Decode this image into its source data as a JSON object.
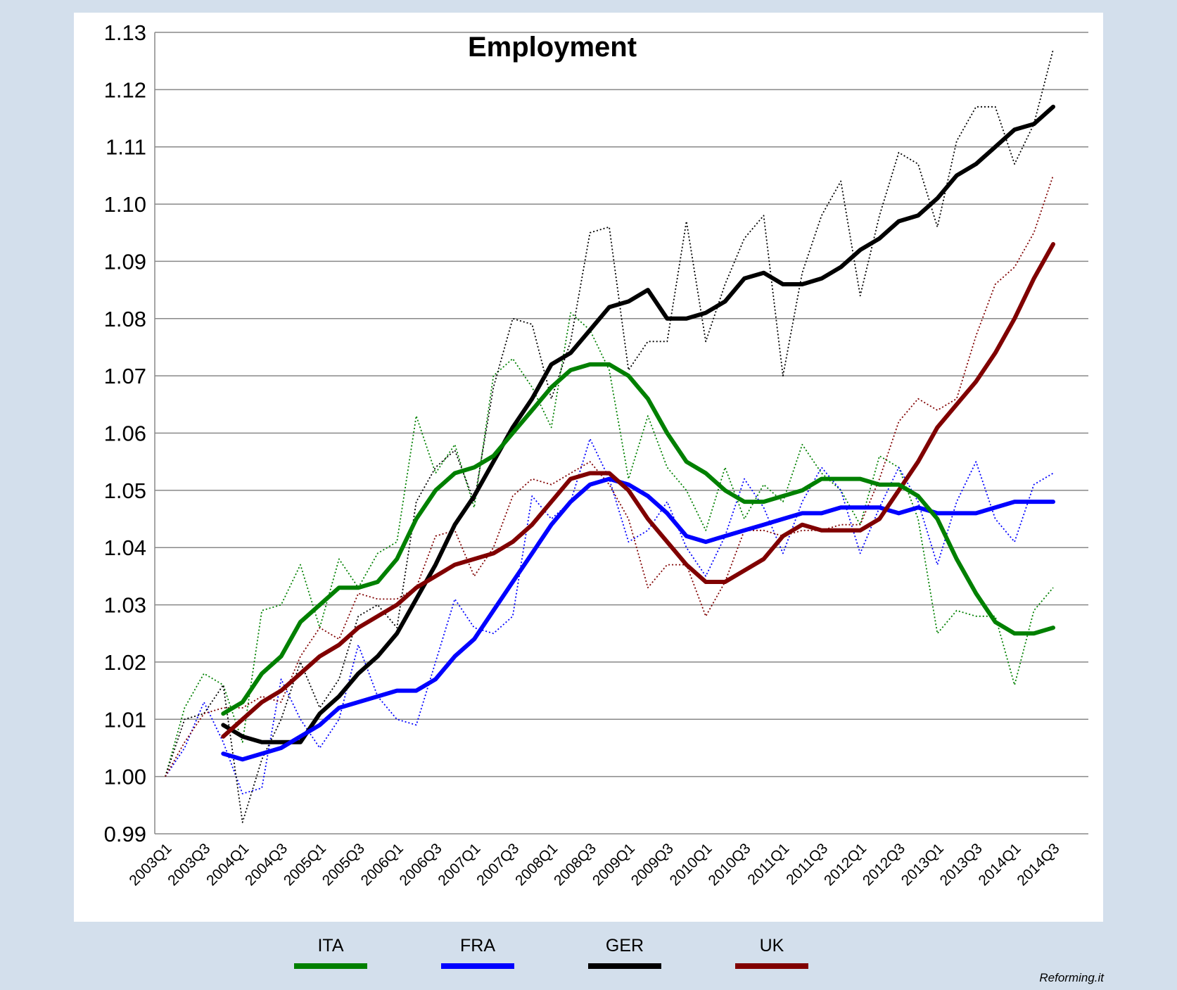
{
  "chart_data": {
    "type": "line",
    "title": "Employment",
    "xlabel": "",
    "ylabel": "",
    "ylim": [
      0.99,
      1.13
    ],
    "yticks": [
      "0.99",
      "1.00",
      "1.01",
      "1.02",
      "1.03",
      "1.04",
      "1.05",
      "1.06",
      "1.07",
      "1.08",
      "1.09",
      "1.10",
      "1.11",
      "1.12",
      "1.13"
    ],
    "grid": true,
    "legend_position": "bottom",
    "x": [
      "2003Q1",
      "2003Q2",
      "2003Q3",
      "2003Q4",
      "2004Q1",
      "2004Q2",
      "2004Q3",
      "2004Q4",
      "2005Q1",
      "2005Q2",
      "2005Q3",
      "2005Q4",
      "2006Q1",
      "2006Q2",
      "2006Q3",
      "2006Q4",
      "2007Q1",
      "2007Q2",
      "2007Q3",
      "2007Q4",
      "2008Q1",
      "2008Q2",
      "2008Q3",
      "2008Q4",
      "2009Q1",
      "2009Q2",
      "2009Q3",
      "2009Q4",
      "2010Q1",
      "2010Q2",
      "2010Q3",
      "2010Q4",
      "2011Q1",
      "2011Q2",
      "2011Q3",
      "2011Q4",
      "2012Q1",
      "2012Q2",
      "2012Q3",
      "2012Q4",
      "2013Q1",
      "2013Q2",
      "2013Q3",
      "2013Q4",
      "2014Q1",
      "2014Q2",
      "2014Q3"
    ],
    "xtick_labels": [
      "2003Q1",
      "2003Q3",
      "2004Q1",
      "2004Q3",
      "2005Q1",
      "2005Q3",
      "2006Q1",
      "2006Q3",
      "2007Q1",
      "2007Q3",
      "2008Q1",
      "2008Q3",
      "2009Q1",
      "2009Q3",
      "2010Q1",
      "2010Q3",
      "2011Q1",
      "2011Q3",
      "2012Q1",
      "2012Q3",
      "2013Q1",
      "2013Q3",
      "2014Q1",
      "2014Q3"
    ],
    "series": [
      {
        "name": "ITA",
        "color": "#008000",
        "raw": [
          1.0,
          1.012,
          1.018,
          1.016,
          1.006,
          1.029,
          1.03,
          1.037,
          1.026,
          1.038,
          1.033,
          1.039,
          1.041,
          1.063,
          1.053,
          1.058,
          1.047,
          1.07,
          1.073,
          1.068,
          1.061,
          1.081,
          1.078,
          1.071,
          1.052,
          1.063,
          1.054,
          1.05,
          1.043,
          1.054,
          1.045,
          1.051,
          1.048,
          1.058,
          1.053,
          1.05,
          1.044,
          1.056,
          1.054,
          1.045,
          1.025,
          1.029,
          1.028,
          1.028,
          1.016,
          1.029,
          1.033
        ],
        "smoothed": [
          null,
          null,
          null,
          1.011,
          1.013,
          1.018,
          1.021,
          1.027,
          1.03,
          1.033,
          1.033,
          1.034,
          1.038,
          1.045,
          1.05,
          1.053,
          1.054,
          1.056,
          1.06,
          1.064,
          1.068,
          1.071,
          1.072,
          1.072,
          1.07,
          1.066,
          1.06,
          1.055,
          1.053,
          1.05,
          1.048,
          1.048,
          1.049,
          1.05,
          1.052,
          1.052,
          1.052,
          1.051,
          1.051,
          1.049,
          1.045,
          1.038,
          1.032,
          1.027,
          1.025,
          1.025,
          1.026
        ]
      },
      {
        "name": "FRA",
        "color": "#0000ff",
        "raw": [
          1.0,
          1.005,
          1.013,
          1.006,
          0.997,
          0.998,
          1.017,
          1.01,
          1.005,
          1.01,
          1.023,
          1.014,
          1.01,
          1.009,
          1.02,
          1.031,
          1.026,
          1.025,
          1.028,
          1.049,
          1.045,
          1.048,
          1.059,
          1.052,
          1.041,
          1.043,
          1.048,
          1.04,
          1.035,
          1.042,
          1.052,
          1.047,
          1.039,
          1.048,
          1.054,
          1.05,
          1.039,
          1.047,
          1.054,
          1.048,
          1.037,
          1.048,
          1.055,
          1.045,
          1.041,
          1.051,
          1.053
        ],
        "smoothed": [
          null,
          null,
          null,
          1.004,
          1.003,
          1.004,
          1.005,
          1.007,
          1.009,
          1.012,
          1.013,
          1.014,
          1.015,
          1.015,
          1.017,
          1.021,
          1.024,
          1.029,
          1.034,
          1.039,
          1.044,
          1.048,
          1.051,
          1.052,
          1.051,
          1.049,
          1.046,
          1.042,
          1.041,
          1.042,
          1.043,
          1.044,
          1.045,
          1.046,
          1.046,
          1.047,
          1.047,
          1.047,
          1.046,
          1.047,
          1.046,
          1.046,
          1.046,
          1.047,
          1.048,
          1.048,
          1.048
        ]
      },
      {
        "name": "GER",
        "color": "#000000",
        "raw": [
          1.0,
          1.01,
          1.011,
          1.016,
          0.992,
          1.003,
          1.01,
          1.02,
          1.012,
          1.017,
          1.028,
          1.03,
          1.026,
          1.048,
          1.054,
          1.057,
          1.048,
          1.068,
          1.08,
          1.079,
          1.066,
          1.076,
          1.095,
          1.096,
          1.071,
          1.076,
          1.076,
          1.097,
          1.076,
          1.086,
          1.094,
          1.098,
          1.07,
          1.088,
          1.098,
          1.104,
          1.084,
          1.098,
          1.109,
          1.107,
          1.096,
          1.111,
          1.117,
          1.117,
          1.107,
          1.114,
          1.127
        ],
        "smoothed": [
          null,
          null,
          null,
          1.009,
          1.007,
          1.006,
          1.006,
          1.006,
          1.011,
          1.014,
          1.018,
          1.021,
          1.025,
          1.031,
          1.037,
          1.044,
          1.049,
          1.055,
          1.061,
          1.066,
          1.072,
          1.074,
          1.078,
          1.082,
          1.083,
          1.085,
          1.08,
          1.08,
          1.081,
          1.083,
          1.087,
          1.088,
          1.086,
          1.086,
          1.087,
          1.089,
          1.092,
          1.094,
          1.097,
          1.098,
          1.101,
          1.105,
          1.107,
          1.11,
          1.113,
          1.114,
          1.117
        ]
      },
      {
        "name": "UK",
        "color": "#800000",
        "raw": [
          1.0,
          1.006,
          1.011,
          1.012,
          1.012,
          1.014,
          1.013,
          1.021,
          1.026,
          1.024,
          1.032,
          1.031,
          1.031,
          1.033,
          1.042,
          1.043,
          1.035,
          1.04,
          1.049,
          1.052,
          1.051,
          1.053,
          1.055,
          1.051,
          1.045,
          1.033,
          1.037,
          1.037,
          1.028,
          1.034,
          1.043,
          1.043,
          1.042,
          1.043,
          1.043,
          1.044,
          1.044,
          1.052,
          1.062,
          1.066,
          1.064,
          1.066,
          1.077,
          1.086,
          1.089,
          1.095,
          1.105
        ],
        "smoothed": [
          null,
          null,
          null,
          1.007,
          1.01,
          1.013,
          1.015,
          1.018,
          1.021,
          1.023,
          1.026,
          1.028,
          1.03,
          1.033,
          1.035,
          1.037,
          1.038,
          1.039,
          1.041,
          1.044,
          1.048,
          1.052,
          1.053,
          1.053,
          1.05,
          1.045,
          1.041,
          1.037,
          1.034,
          1.034,
          1.036,
          1.038,
          1.042,
          1.044,
          1.043,
          1.043,
          1.043,
          1.045,
          1.05,
          1.055,
          1.061,
          1.065,
          1.069,
          1.074,
          1.08,
          1.087,
          1.093
        ]
      }
    ]
  },
  "legend": [
    {
      "label": "ITA",
      "color": "#008000"
    },
    {
      "label": "FRA",
      "color": "#0000ff"
    },
    {
      "label": "GER",
      "color": "#000000"
    },
    {
      "label": "UK",
      "color": "#800000"
    }
  ],
  "credit": "Reforming.it"
}
